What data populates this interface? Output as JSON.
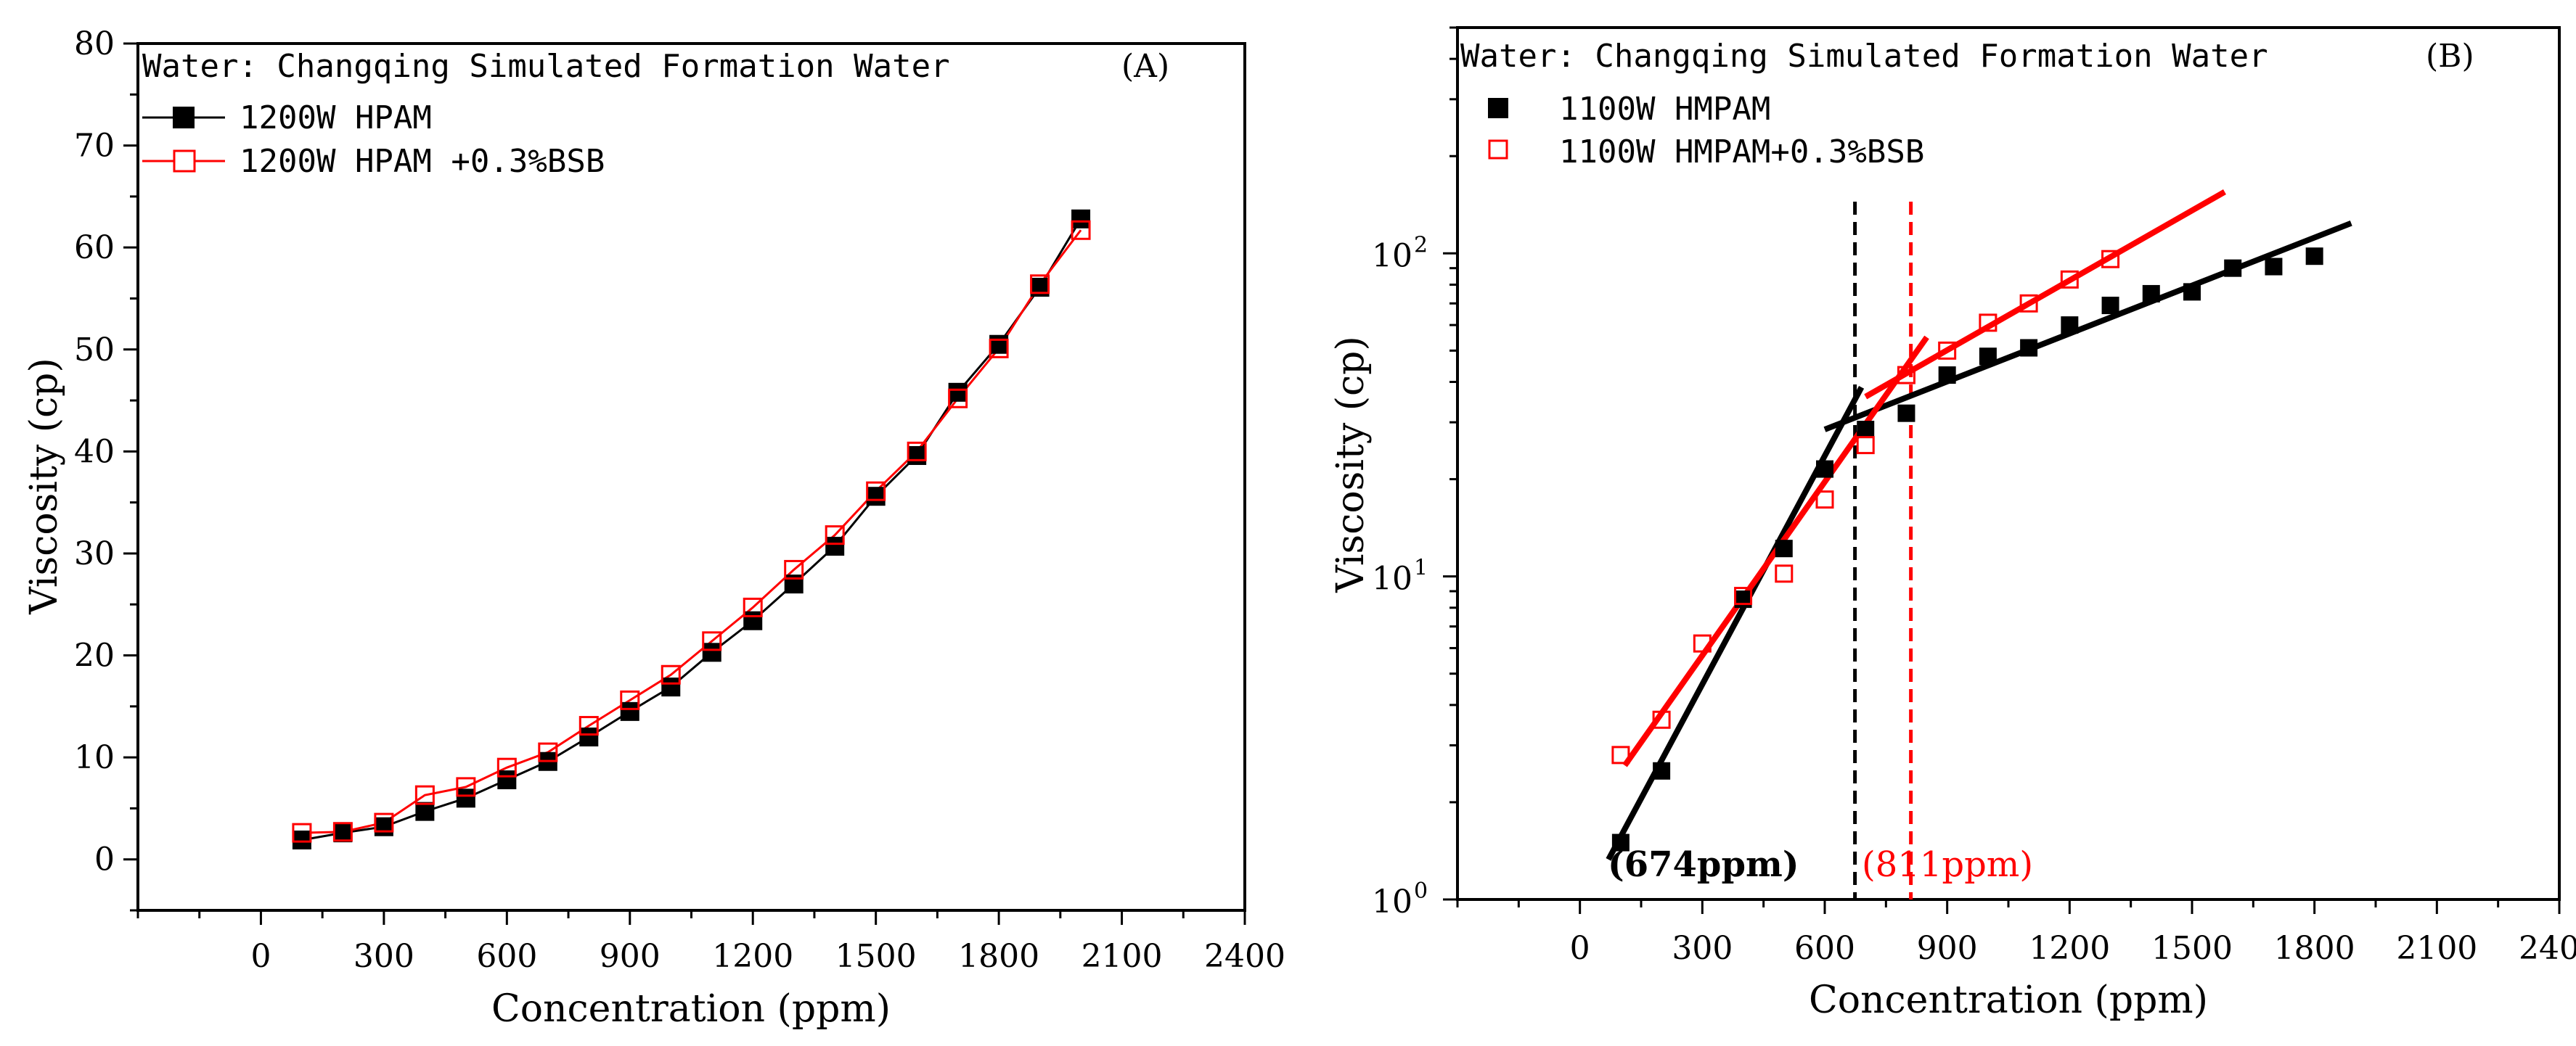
{
  "chart_data": [
    {
      "panel_label": "(A)",
      "type": "line",
      "annotation": "Water: Changqing Simulated Formation Water",
      "xlabel": "Concentration (ppm)",
      "ylabel": "Viscosity (cp)",
      "xlim": [
        -300,
        2400
      ],
      "ylim": [
        -5,
        80
      ],
      "y_scale": "linear",
      "xticks": [
        0,
        300,
        600,
        900,
        1200,
        1500,
        1800,
        2100,
        2400
      ],
      "yticks": [
        0,
        10,
        20,
        30,
        40,
        50,
        60,
        70,
        80
      ],
      "legend_position": "top-left",
      "series": [
        {
          "name": "1200W HPAM",
          "color": "#000000",
          "marker": "filled-square",
          "x": [
            100,
            200,
            300,
            400,
            500,
            600,
            700,
            800,
            900,
            1000,
            1100,
            1200,
            1300,
            1400,
            1500,
            1600,
            1700,
            1800,
            1900,
            2000
          ],
          "y": [
            1.9,
            2.6,
            3.2,
            4.7,
            6.0,
            7.8,
            9.6,
            12.0,
            14.5,
            16.9,
            20.3,
            23.4,
            27.0,
            30.7,
            35.6,
            39.6,
            45.8,
            50.5,
            56.1,
            62.8
          ]
        },
        {
          "name": "1200W HPAM +0.3%BSB",
          "color": "#ff0000",
          "marker": "open-square",
          "x": [
            100,
            200,
            300,
            400,
            500,
            600,
            700,
            800,
            900,
            1000,
            1100,
            1200,
            1300,
            1400,
            1500,
            1600,
            1700,
            1800,
            1900,
            2000
          ],
          "y": [
            2.6,
            2.7,
            3.6,
            6.3,
            7.1,
            9.0,
            10.5,
            13.1,
            15.6,
            18.1,
            21.4,
            24.7,
            28.4,
            31.8,
            36.1,
            40.0,
            45.2,
            50.1,
            56.4,
            61.7
          ]
        }
      ]
    },
    {
      "panel_label": "(B)",
      "type": "scatter",
      "annotation": "Water: Changqing Simulated Formation Water",
      "xlabel": "Concentration (ppm)",
      "ylabel": "Viscosity (cp)",
      "xlim": [
        -300,
        2400
      ],
      "ylim": [
        1,
        500
      ],
      "y_scale": "log",
      "xticks": [
        0,
        300,
        600,
        900,
        1200,
        1500,
        1800,
        2100,
        2400
      ],
      "yticks": [
        1,
        10,
        100
      ],
      "ytick_labels": [
        "10",
        "10",
        "10"
      ],
      "ytick_exponents": [
        "0",
        "1",
        "2"
      ],
      "legend_position": "top-left",
      "series": [
        {
          "name": "1100W HMPAM",
          "color": "#000000",
          "marker": "filled-square",
          "x": [
            100,
            200,
            400,
            500,
            600,
            700,
            800,
            900,
            1000,
            1100,
            1200,
            1300,
            1400,
            1500,
            1600,
            1700,
            1800
          ],
          "y": [
            1.5,
            2.5,
            8.5,
            12.2,
            21.5,
            28.5,
            32.0,
            42.0,
            48.0,
            51.0,
            60.0,
            69.0,
            75.0,
            76.0,
            90.0,
            91.0,
            98.0
          ]
        },
        {
          "name": "1100W HMPAM+0.3%BSB",
          "color": "#ff0000",
          "marker": "open-square",
          "x": [
            100,
            200,
            300,
            400,
            500,
            600,
            700,
            800,
            900,
            1000,
            1100,
            1200,
            1300
          ],
          "y": [
            2.8,
            3.6,
            6.2,
            8.7,
            10.2,
            17.3,
            25.5,
            42.0,
            50.0,
            61.0,
            70.0,
            83.0,
            96.0
          ]
        }
      ],
      "fit_lines": [
        {
          "color": "#000000",
          "x": [
            70,
            690
          ],
          "y": [
            1.33,
            38.5
          ]
        },
        {
          "color": "#000000",
          "x": [
            600,
            1890
          ],
          "y": [
            28.5,
            124
          ]
        },
        {
          "color": "#ff0000",
          "x": [
            110,
            850
          ],
          "y": [
            2.6,
            55
          ]
        },
        {
          "color": "#ff0000",
          "x": [
            700,
            1580
          ],
          "y": [
            36,
            155
          ]
        }
      ],
      "vlines": [
        {
          "x": 674,
          "color": "#000000",
          "label": "(674ppm)"
        },
        {
          "x": 811,
          "color": "#ff0000",
          "label": "(811ppm)"
        }
      ]
    }
  ]
}
